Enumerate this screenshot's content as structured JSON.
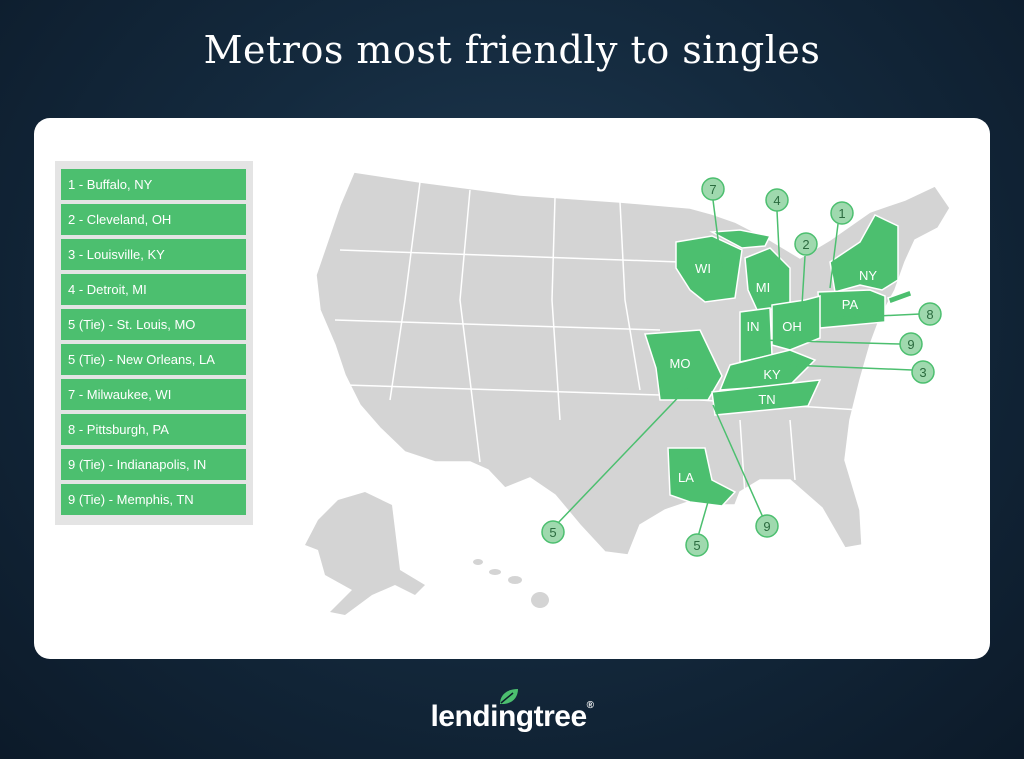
{
  "title": "Metros most friendly to singles",
  "legend": [
    "1 - Buffalo, NY",
    "2 - Cleveland, OH",
    "3 - Louisville, KY",
    "4 - Detroit, MI",
    "5 (Tie) - St. Louis, MO",
    "5 (Tie) - New Orleans, LA",
    "7 - Milwaukee, WI",
    "8 - Pittsburgh, PA",
    "9 (Tie) - Indianapolis, IN",
    "9 (Tie) - Memphis, TN"
  ],
  "states": [
    "WI",
    "MI",
    "NY",
    "PA",
    "IN",
    "OH",
    "MO",
    "KY",
    "TN",
    "LA"
  ],
  "markers": [
    "7",
    "4",
    "2",
    "1",
    "8",
    "9",
    "3",
    "5",
    "9",
    "5"
  ],
  "colors": {
    "highlight": "#4cbf6f",
    "base_state": "#d4d4d4",
    "marker_fill": "#9fd9ae"
  },
  "logo": "lendingtree"
}
